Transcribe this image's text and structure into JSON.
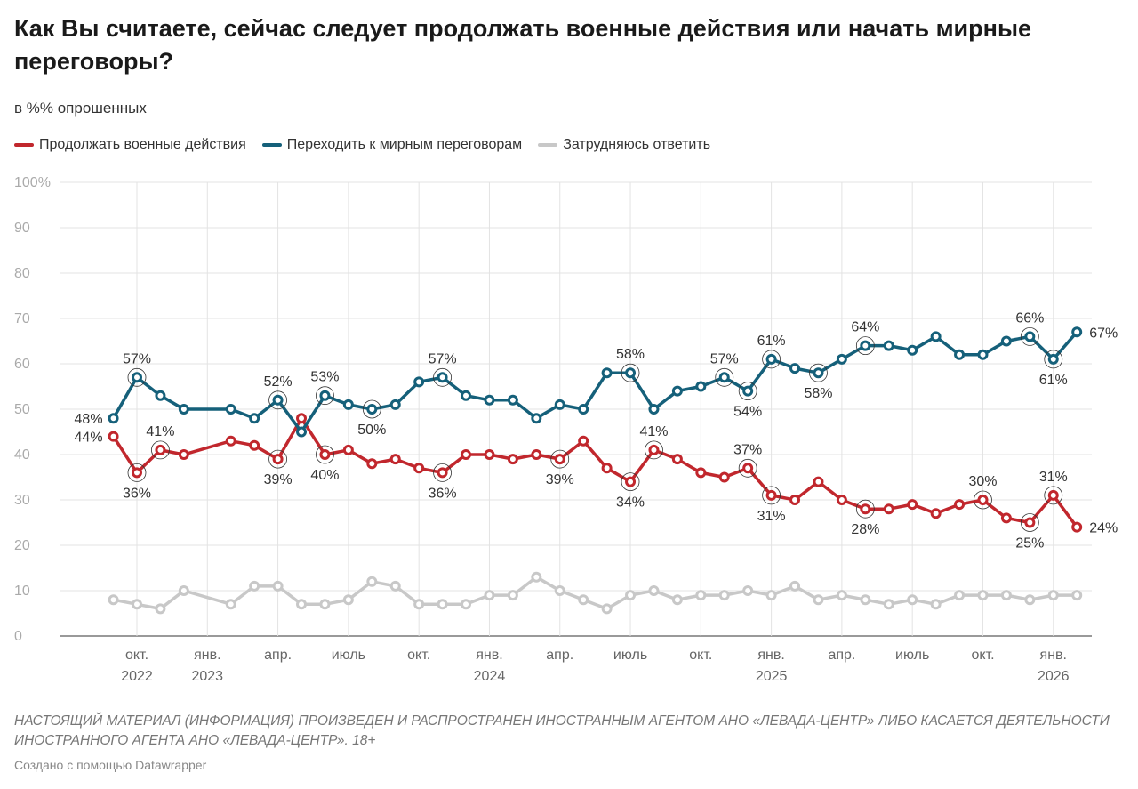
{
  "chart_data": {
    "type": "line",
    "title": "Как Вы считаете, сейчас следует продолжать военные действия или начать мирные переговоры?",
    "subtitle": "в %% опрошенных",
    "ylim": [
      0,
      100
    ],
    "yticks": [
      "0",
      "10",
      "20",
      "30",
      "40",
      "50",
      "60",
      "70",
      "80",
      "90",
      "100%"
    ],
    "xticks": [
      {
        "m": "2022-10",
        "l1": "окт.",
        "l2": "2022"
      },
      {
        "m": "2023-01",
        "l1": "янв.",
        "l2": "2023"
      },
      {
        "m": "2023-04",
        "l1": "апр.",
        "l2": ""
      },
      {
        "m": "2023-07",
        "l1": "июль",
        "l2": ""
      },
      {
        "m": "2023-10",
        "l1": "окт.",
        "l2": ""
      },
      {
        "m": "2024-01",
        "l1": "янв.",
        "l2": "2024"
      },
      {
        "m": "2024-04",
        "l1": "апр.",
        "l2": ""
      },
      {
        "m": "2024-07",
        "l1": "июль",
        "l2": ""
      },
      {
        "m": "2024-10",
        "l1": "окт.",
        "l2": ""
      },
      {
        "m": "2025-01",
        "l1": "янв.",
        "l2": "2025"
      },
      {
        "m": "2025-04",
        "l1": "апр.",
        "l2": ""
      },
      {
        "m": "2025-07",
        "l1": "июль",
        "l2": ""
      },
      {
        "m": "2025-10",
        "l1": "окт.",
        "l2": ""
      },
      {
        "m": "2026-01",
        "l1": "янв.",
        "l2": "2026"
      }
    ],
    "grid": true,
    "legend_position": "top-left",
    "x": [
      "2022-09",
      "2022-10",
      "2022-11",
      "2022-12",
      "2023-02",
      "2023-03",
      "2023-04",
      "2023-05",
      "2023-06",
      "2023-07",
      "2023-08",
      "2023-09",
      "2023-10",
      "2023-11",
      "2023-12",
      "2024-01",
      "2024-02",
      "2024-03",
      "2024-04",
      "2024-05",
      "2024-06",
      "2024-07",
      "2024-08",
      "2024-09",
      "2024-10",
      "2024-11",
      "2024-12",
      "2025-01",
      "2025-02",
      "2025-03",
      "2025-04",
      "2025-05",
      "2025-06",
      "2025-07",
      "2025-08",
      "2025-09",
      "2025-10",
      "2025-11",
      "2025-12",
      "2026-01",
      "2026-02"
    ],
    "series": [
      {
        "name": "Продолжать военные действия",
        "color": "#c1272d",
        "values": [
          44,
          36,
          41,
          40,
          43,
          42,
          39,
          48,
          40,
          41,
          38,
          39,
          37,
          36,
          40,
          40,
          39,
          40,
          39,
          43,
          37,
          34,
          41,
          39,
          36,
          35,
          37,
          31,
          30,
          34,
          30,
          28,
          28,
          29,
          27,
          29,
          30,
          26,
          25,
          31,
          24
        ],
        "labels": {
          "0": "l",
          "1": "b",
          "2": "a",
          "6": "b",
          "8": "b",
          "13": "b",
          "18": "b",
          "21": "b",
          "22": "a",
          "26": "a",
          "27": "b",
          "31": "b",
          "36": "a",
          "38": "b",
          "39": "a",
          "40": "r"
        }
      },
      {
        "name": "Переходить к мирным переговорам",
        "color": "#15607a",
        "values": [
          48,
          57,
          53,
          50,
          50,
          48,
          52,
          45,
          53,
          51,
          50,
          51,
          56,
          57,
          53,
          52,
          52,
          48,
          51,
          50,
          58,
          58,
          50,
          54,
          55,
          57,
          54,
          61,
          59,
          58,
          61,
          64,
          64,
          63,
          66,
          62,
          62,
          65,
          66,
          61,
          67
        ],
        "labels": {
          "0": "l",
          "1": "a",
          "6": "a",
          "8": "a",
          "10": "b",
          "13": "a",
          "21": "a",
          "25": "a",
          "26": "b",
          "27": "a",
          "29": "b",
          "31": "a",
          "38": "a",
          "39": "b",
          "40": "r"
        }
      },
      {
        "name": "Затрудняюсь ответить",
        "color": "#c8c8c8",
        "values": [
          8,
          7,
          6,
          10,
          7,
          11,
          11,
          7,
          7,
          8,
          12,
          11,
          7,
          7,
          7,
          9,
          9,
          13,
          10,
          8,
          6,
          9,
          10,
          8,
          9,
          9,
          10,
          9,
          11,
          8,
          9,
          8,
          7,
          8,
          7,
          9,
          9,
          9,
          8,
          9,
          9
        ],
        "labels": {}
      }
    ]
  },
  "notes": "НАСТОЯЩИЙ МАТЕРИАЛ (ИНФОРМАЦИЯ) ПРОИЗВЕДЕН И РАСПРОСТРАНЕН ИНОСТРАННЫМ АГЕНТОМ АНО «ЛЕВАДА-ЦЕНТР» ЛИБО КАСАЕТСЯ ДЕЯТЕЛЬНОСТИ ИНОСТРАННОГО АГЕНТА АНО «ЛЕВАДА-ЦЕНТР». 18+",
  "credit": "Создано с помощью Datawrapper"
}
